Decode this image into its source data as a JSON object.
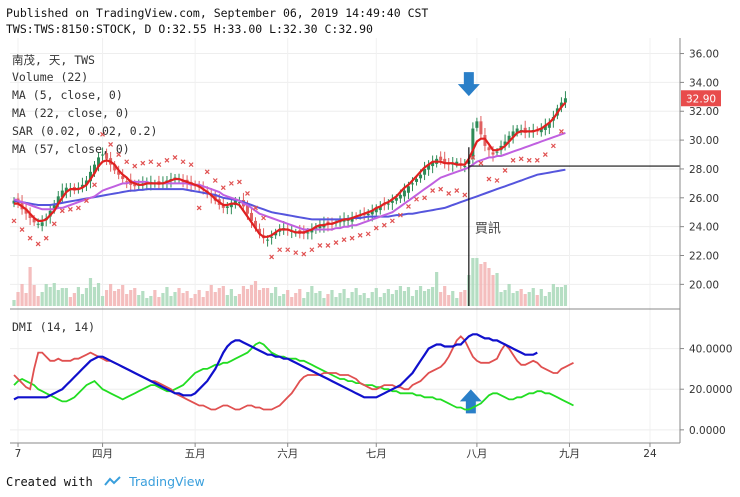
{
  "header": {
    "published": "Published on TradingView.com, September 06, 2019 14:49:40 CST",
    "ohlc": "TWS:TWS:8150:STOCK, D O:32.55 H:33.00 L:32.30 C:32.90"
  },
  "legend": {
    "symbol": "南茂, 天, TWS",
    "volume": "Volume (22)",
    "ma5": "MA (5, close, 0)",
    "ma22": "MA (22, close, 0)",
    "sar": "SAR (0.02, 0.02, 0.2)",
    "ma57": "MA (57, close, 0)",
    "dmi": "DMI (14, 14)"
  },
  "footer": {
    "created": "Created with",
    "brand": "TradingView"
  },
  "colors": {
    "ma5": "#e02020",
    "ma22": "#c060e0",
    "ma57": "#5555dd",
    "sar": "#e05050",
    "up": "#2e8b57",
    "down": "#e06060",
    "dmi_plus": "#22dd22",
    "dmi_minus": "#e05050",
    "adx": "#1010cc",
    "arrow": "#2a7fc8",
    "price_badge": "#e84c4c"
  },
  "chart_data": [
    {
      "type": "candlestick",
      "title": "南茂, 天, TWS",
      "y_axis_ticks": [
        "36.00",
        "34.00",
        "32.00",
        "30.00",
        "28.00",
        "26.00",
        "24.00",
        "22.00",
        "20.00"
      ],
      "ylim": [
        18.5,
        36.8
      ],
      "x_tick_labels": [
        "7",
        "四月",
        "五月",
        "六月",
        "七月",
        "八月",
        "九月",
        "24"
      ],
      "x_tick_index": [
        1,
        22,
        45,
        68,
        90,
        115,
        138,
        158
      ],
      "n_bars": 160,
      "last_price": "32.90",
      "breakout_level": 28.2,
      "annotation": "買訊",
      "close": [
        25.8,
        25.6,
        25.2,
        24.9,
        24.6,
        24.3,
        24.2,
        24.3,
        24.6,
        25.1,
        25.6,
        26.1,
        26.5,
        26.7,
        26.6,
        26.5,
        26.7,
        26.9,
        27.2,
        27.8,
        28.3,
        28.8,
        29.0,
        28.7,
        28.3,
        27.9,
        27.6,
        27.3,
        27.1,
        26.9,
        26.8,
        26.9,
        27.0,
        27.1,
        27.1,
        27.0,
        26.9,
        27.0,
        27.2,
        27.3,
        27.4,
        27.3,
        27.1,
        27.0,
        26.9,
        26.8,
        26.7,
        26.6,
        26.4,
        26.1,
        25.8,
        25.5,
        25.3,
        25.4,
        25.6,
        25.8,
        25.7,
        25.4,
        24.9,
        24.4,
        23.9,
        23.5,
        23.2,
        23.1,
        23.3,
        23.6,
        23.8,
        23.9,
        23.8,
        23.7,
        23.6,
        23.5,
        23.5,
        23.6,
        23.8,
        24.0,
        24.1,
        24.2,
        24.1,
        24.2,
        24.3,
        24.4,
        24.5,
        24.5,
        24.6,
        24.7,
        24.8,
        24.8,
        24.9,
        25.1,
        25.3,
        25.4,
        25.5,
        25.6,
        25.8,
        26.0,
        26.2,
        26.5,
        26.8,
        27.0,
        27.3,
        27.6,
        28.0,
        28.3,
        28.5,
        28.7,
        28.6,
        28.4,
        28.3,
        28.4,
        28.5,
        28.3,
        28.2,
        28.6,
        30.8,
        31.3,
        30.4,
        29.6,
        29.3,
        29.0,
        29.2,
        29.6,
        29.9,
        30.3,
        30.6,
        30.8,
        30.7,
        30.5,
        30.6,
        30.7,
        30.6,
        30.8,
        31.0,
        31.2,
        31.6,
        32.2,
        32.6,
        32.9
      ],
      "ma5": [
        25.6,
        25.6,
        25.4,
        25.2,
        24.9,
        24.6,
        24.4,
        24.4,
        24.5,
        24.8,
        25.1,
        25.6,
        26.0,
        26.4,
        26.6,
        26.6,
        26.6,
        26.7,
        26.9,
        27.3,
        27.7,
        28.2,
        28.5,
        28.6,
        28.5,
        28.3,
        27.9,
        27.6,
        27.4,
        27.1,
        27.0,
        26.9,
        26.9,
        27.0,
        27.0,
        27.0,
        27.0,
        27.0,
        27.1,
        27.2,
        27.3,
        27.3,
        27.2,
        27.1,
        27.0,
        26.9,
        26.8,
        26.6,
        26.4,
        26.2,
        25.9,
        25.7,
        25.5,
        25.5,
        25.6,
        25.6,
        25.5,
        25.1,
        24.7,
        24.3,
        23.9,
        23.5,
        23.3,
        23.3,
        23.4,
        23.6,
        23.8,
        23.8,
        23.8,
        23.7,
        23.6,
        23.6,
        23.6,
        23.7,
        23.8,
        24.0,
        24.1,
        24.1,
        24.2,
        24.2,
        24.3,
        24.4,
        24.5,
        24.5,
        24.6,
        24.7,
        24.8,
        24.9,
        25.0,
        25.1,
        25.3,
        25.4,
        25.6,
        25.7,
        25.9,
        26.1,
        26.4,
        26.7,
        26.9,
        27.2,
        27.5,
        27.8,
        28.1,
        28.3,
        28.5,
        28.5,
        28.5,
        28.4,
        28.4,
        28.4,
        28.3,
        28.3,
        28.3,
        28.7,
        29.3,
        29.9,
        30.1,
        30.1,
        29.7,
        29.3,
        29.3,
        29.4,
        29.6,
        29.9,
        30.2,
        30.5,
        30.6,
        30.6,
        30.6,
        30.6,
        30.7,
        30.8,
        31.0,
        31.2,
        31.5,
        31.9,
        32.3,
        32.6
      ],
      "ma22": [
        25.9,
        25.8,
        25.7,
        25.6,
        25.5,
        25.4,
        25.3,
        25.2,
        25.2,
        25.2,
        25.2,
        25.3,
        25.3,
        25.4,
        25.5,
        25.6,
        25.7,
        25.8,
        25.9,
        26.0,
        26.1,
        26.3,
        26.5,
        26.6,
        26.7,
        26.8,
        26.9,
        27.0,
        27.0,
        27.1,
        27.1,
        27.1,
        27.1,
        27.1,
        27.0,
        27.0,
        27.0,
        27.0,
        27.0,
        27.0,
        27.0,
        27.0,
        27.0,
        27.0,
        26.9,
        26.9,
        26.9,
        26.8,
        26.7,
        26.6,
        26.5,
        26.4,
        26.2,
        26.1,
        26.0,
        25.9,
        25.8,
        25.6,
        25.5,
        25.3,
        25.1,
        24.9,
        24.8,
        24.7,
        24.6,
        24.5,
        24.4,
        24.3,
        24.2,
        24.1,
        24.0,
        23.9,
        23.8,
        23.8,
        23.8,
        23.8,
        23.8,
        23.8,
        23.8,
        23.8,
        23.9,
        23.9,
        24.0,
        24.0,
        24.1,
        24.1,
        24.2,
        24.3,
        24.4,
        24.5,
        24.6,
        24.7,
        24.8,
        24.9,
        25.0,
        25.2,
        25.4,
        25.6,
        25.8,
        26.0,
        26.2,
        26.4,
        26.6,
        26.8,
        27.0,
        27.2,
        27.4,
        27.5,
        27.6,
        27.7,
        27.8,
        27.9,
        28.0,
        28.1,
        28.3,
        28.5,
        28.6,
        28.7,
        28.8,
        28.8,
        28.9,
        28.9,
        29.0,
        29.1,
        29.2,
        29.3,
        29.4,
        29.5,
        29.6,
        29.7,
        29.8,
        29.9,
        30.0,
        30.1,
        30.2,
        30.3,
        30.4,
        30.5
      ],
      "ma57": [
        25.8,
        25.75,
        25.7,
        25.65,
        25.6,
        25.55,
        25.5,
        25.5,
        25.5,
        25.5,
        25.55,
        25.6,
        25.65,
        25.7,
        25.75,
        25.8,
        25.85,
        25.9,
        25.95,
        26.0,
        26.05,
        26.1,
        26.15,
        26.2,
        26.25,
        26.3,
        26.35,
        26.4,
        26.45,
        26.5,
        26.5,
        26.55,
        26.55,
        26.6,
        26.6,
        26.6,
        26.6,
        26.6,
        26.6,
        26.6,
        26.6,
        26.6,
        26.6,
        26.55,
        26.5,
        26.45,
        26.4,
        26.35,
        26.3,
        26.25,
        26.2,
        26.1,
        26.0,
        25.95,
        25.9,
        25.85,
        25.8,
        25.7,
        25.6,
        25.5,
        25.4,
        25.3,
        25.2,
        25.1,
        25.0,
        24.95,
        24.9,
        24.85,
        24.8,
        24.75,
        24.7,
        24.65,
        24.6,
        24.55,
        24.5,
        24.5,
        24.5,
        24.5,
        24.5,
        24.5,
        24.5,
        24.5,
        24.5,
        24.55,
        24.6,
        24.6,
        24.6,
        24.65,
        24.7,
        24.7,
        24.7,
        24.7,
        24.7,
        24.7,
        24.75,
        24.8,
        24.8,
        24.85,
        24.9,
        24.9,
        24.95,
        25.0,
        25.05,
        25.1,
        25.15,
        25.2,
        25.25,
        25.3,
        25.4,
        25.5,
        25.6,
        25.7,
        25.8,
        25.9,
        26.0,
        26.1,
        26.2,
        26.3,
        26.4,
        26.5,
        26.6,
        26.7,
        26.8,
        26.9,
        27.0,
        27.1,
        27.2,
        27.3,
        27.4,
        27.5,
        27.6,
        27.65,
        27.7,
        27.75,
        27.8,
        27.85,
        27.9,
        27.95
      ]
    },
    {
      "type": "line",
      "title": "DMI (14, 14)",
      "y_axis_ticks": [
        "40.0000",
        "20.0000",
        "0.0000"
      ],
      "ylim": [
        -5,
        58
      ],
      "series": [
        {
          "name": "+DI",
          "values": [
            22,
            24,
            25,
            24,
            23,
            22,
            20,
            19,
            18,
            17,
            16,
            15,
            14,
            14,
            15,
            16,
            18,
            20,
            22,
            23,
            24,
            22,
            20,
            19,
            18,
            17,
            16,
            15,
            16,
            17,
            18,
            19,
            20,
            21,
            22,
            22,
            21,
            20,
            19,
            19,
            20,
            21,
            22,
            24,
            26,
            28,
            29,
            30,
            30,
            31,
            32,
            32,
            33,
            33,
            34,
            35,
            36,
            37,
            38,
            40,
            42,
            43,
            42,
            40,
            38,
            37,
            36,
            36,
            35,
            35,
            35,
            34,
            34,
            33,
            32,
            31,
            30,
            29,
            28,
            27,
            26,
            25,
            25,
            24,
            24,
            23,
            23,
            22,
            22,
            22,
            21,
            21,
            20,
            20,
            19,
            19,
            18,
            18,
            18,
            18,
            17,
            17,
            16,
            16,
            16,
            15,
            15,
            14,
            13,
            12,
            11,
            11,
            10,
            10,
            11,
            12,
            13,
            15,
            17,
            18,
            18,
            17,
            16,
            15,
            15,
            16,
            16,
            17,
            18,
            18,
            19,
            19,
            18,
            18,
            17,
            16,
            15,
            14,
            13,
            12
          ]
        },
        {
          "name": "-DI",
          "values": [
            27,
            25,
            23,
            21,
            20,
            30,
            38,
            38,
            36,
            34,
            34,
            35,
            34,
            34,
            34,
            35,
            35,
            36,
            37,
            38,
            37,
            36,
            35,
            34,
            34,
            33,
            32,
            31,
            30,
            29,
            28,
            27,
            26,
            25,
            24,
            24,
            23,
            22,
            21,
            20,
            18,
            17,
            16,
            15,
            14,
            13,
            12,
            12,
            11,
            10,
            10,
            11,
            12,
            12,
            11,
            10,
            10,
            11,
            12,
            12,
            11,
            11,
            10,
            10,
            10,
            11,
            12,
            14,
            16,
            18,
            21,
            24,
            26,
            27,
            27,
            27,
            27,
            28,
            28,
            28,
            28,
            27,
            27,
            27,
            26,
            25,
            23,
            22,
            21,
            20,
            20,
            21,
            22,
            22,
            22,
            21,
            21,
            20,
            20,
            22,
            23,
            24,
            26,
            28,
            29,
            30,
            31,
            33,
            36,
            40,
            44,
            46,
            44,
            40,
            36,
            34,
            33,
            33,
            33,
            34,
            35,
            39,
            42,
            40,
            37,
            34,
            32,
            32,
            33,
            34,
            33,
            31,
            30,
            29,
            28,
            28,
            30,
            31,
            32,
            33
          ]
        },
        {
          "name": "ADX",
          "values": [
            15,
            16,
            16,
            16,
            16,
            16,
            16,
            16,
            16,
            17,
            18,
            19,
            20,
            22,
            24,
            26,
            28,
            30,
            32,
            34,
            35,
            36,
            36,
            35,
            34,
            33,
            32,
            31,
            30,
            29,
            28,
            27,
            26,
            25,
            24,
            23,
            22,
            21,
            20,
            19,
            18,
            18,
            17,
            17,
            17,
            18,
            20,
            22,
            24,
            27,
            30,
            34,
            38,
            41,
            43,
            44,
            44,
            43,
            42,
            41,
            40,
            39,
            38,
            37,
            37,
            36,
            36,
            35,
            35,
            34,
            33,
            32,
            31,
            30,
            29,
            28,
            27,
            26,
            25,
            24,
            23,
            22,
            21,
            20,
            19,
            18,
            17,
            16,
            16,
            16,
            16,
            17,
            18,
            19,
            20,
            21,
            22,
            24,
            26,
            28,
            31,
            34,
            37,
            40,
            41,
            42,
            42,
            41,
            41,
            41,
            42,
            42,
            44,
            46,
            47,
            47,
            46,
            45,
            45,
            44,
            44,
            43,
            42,
            41,
            40,
            39,
            38,
            37,
            37,
            37,
            38
          ]
        }
      ]
    }
  ]
}
